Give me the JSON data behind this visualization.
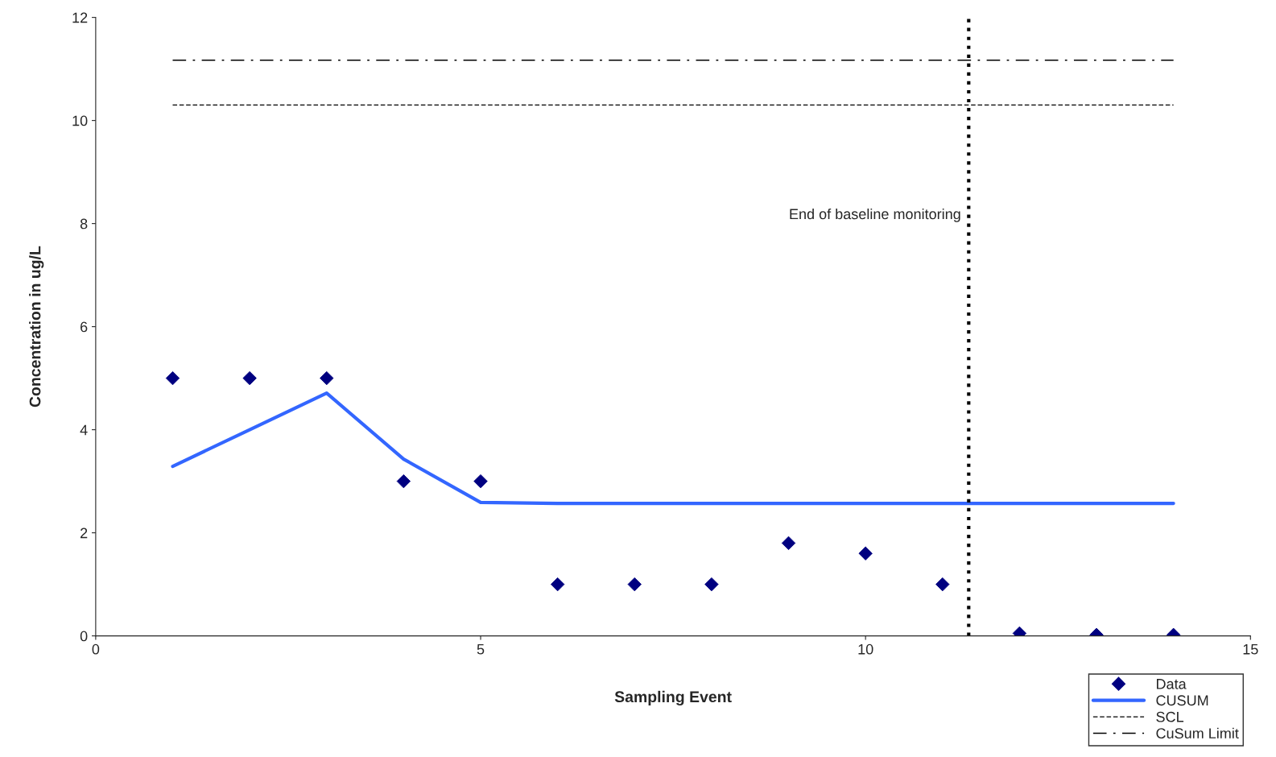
{
  "chart_data": {
    "type": "scatter",
    "xlabel": "Sampling Event",
    "ylabel": "Concentration in ug/L",
    "xlim": [
      0,
      15
    ],
    "xticks": [
      0,
      5,
      10,
      15
    ],
    "ylim": [
      0,
      12
    ],
    "yticks": [
      0,
      2,
      4,
      6,
      8,
      10,
      12
    ],
    "grid": false,
    "legend": "bottom right",
    "series": [
      {
        "name": "Data",
        "marker": "diamond",
        "color": "#000080",
        "x": [
          1,
          2,
          3,
          4,
          5,
          6,
          7,
          8,
          9,
          10,
          11,
          12,
          13,
          14
        ],
        "values": [
          5,
          5,
          5,
          3,
          3,
          1,
          1,
          1,
          1.8,
          1.6,
          1,
          0.05,
          0.02,
          0.02
        ]
      },
      {
        "name": "CUSUM",
        "type": "line",
        "marker": "none",
        "line_style": "solid",
        "color": "#3366ff",
        "x": [
          1,
          2,
          3,
          4,
          5,
          6,
          7,
          8,
          9,
          10,
          11,
          12,
          13,
          14
        ],
        "values": [
          3.29,
          4.0,
          4.71,
          3.43,
          2.59,
          2.57,
          2.57,
          2.57,
          2.57,
          2.57,
          2.57,
          2.57,
          2.57,
          2.57
        ]
      },
      {
        "name": "SCL",
        "type": "line",
        "marker": "none",
        "line_style": "dashed",
        "color": "#000000",
        "x": [
          1,
          14
        ],
        "values": [
          10.3,
          10.3
        ]
      },
      {
        "name": "CuSum Limit",
        "type": "line",
        "marker": "none",
        "line_style": "dashdot",
        "color": "#000000",
        "x": [
          1,
          14
        ],
        "values": [
          11.17,
          11.17
        ]
      }
    ],
    "ref_lines": [
      {
        "axis": "x",
        "value": 11.34,
        "label": "End of baseline monitoring",
        "color": "#000000",
        "line_style": "dotted"
      }
    ]
  }
}
